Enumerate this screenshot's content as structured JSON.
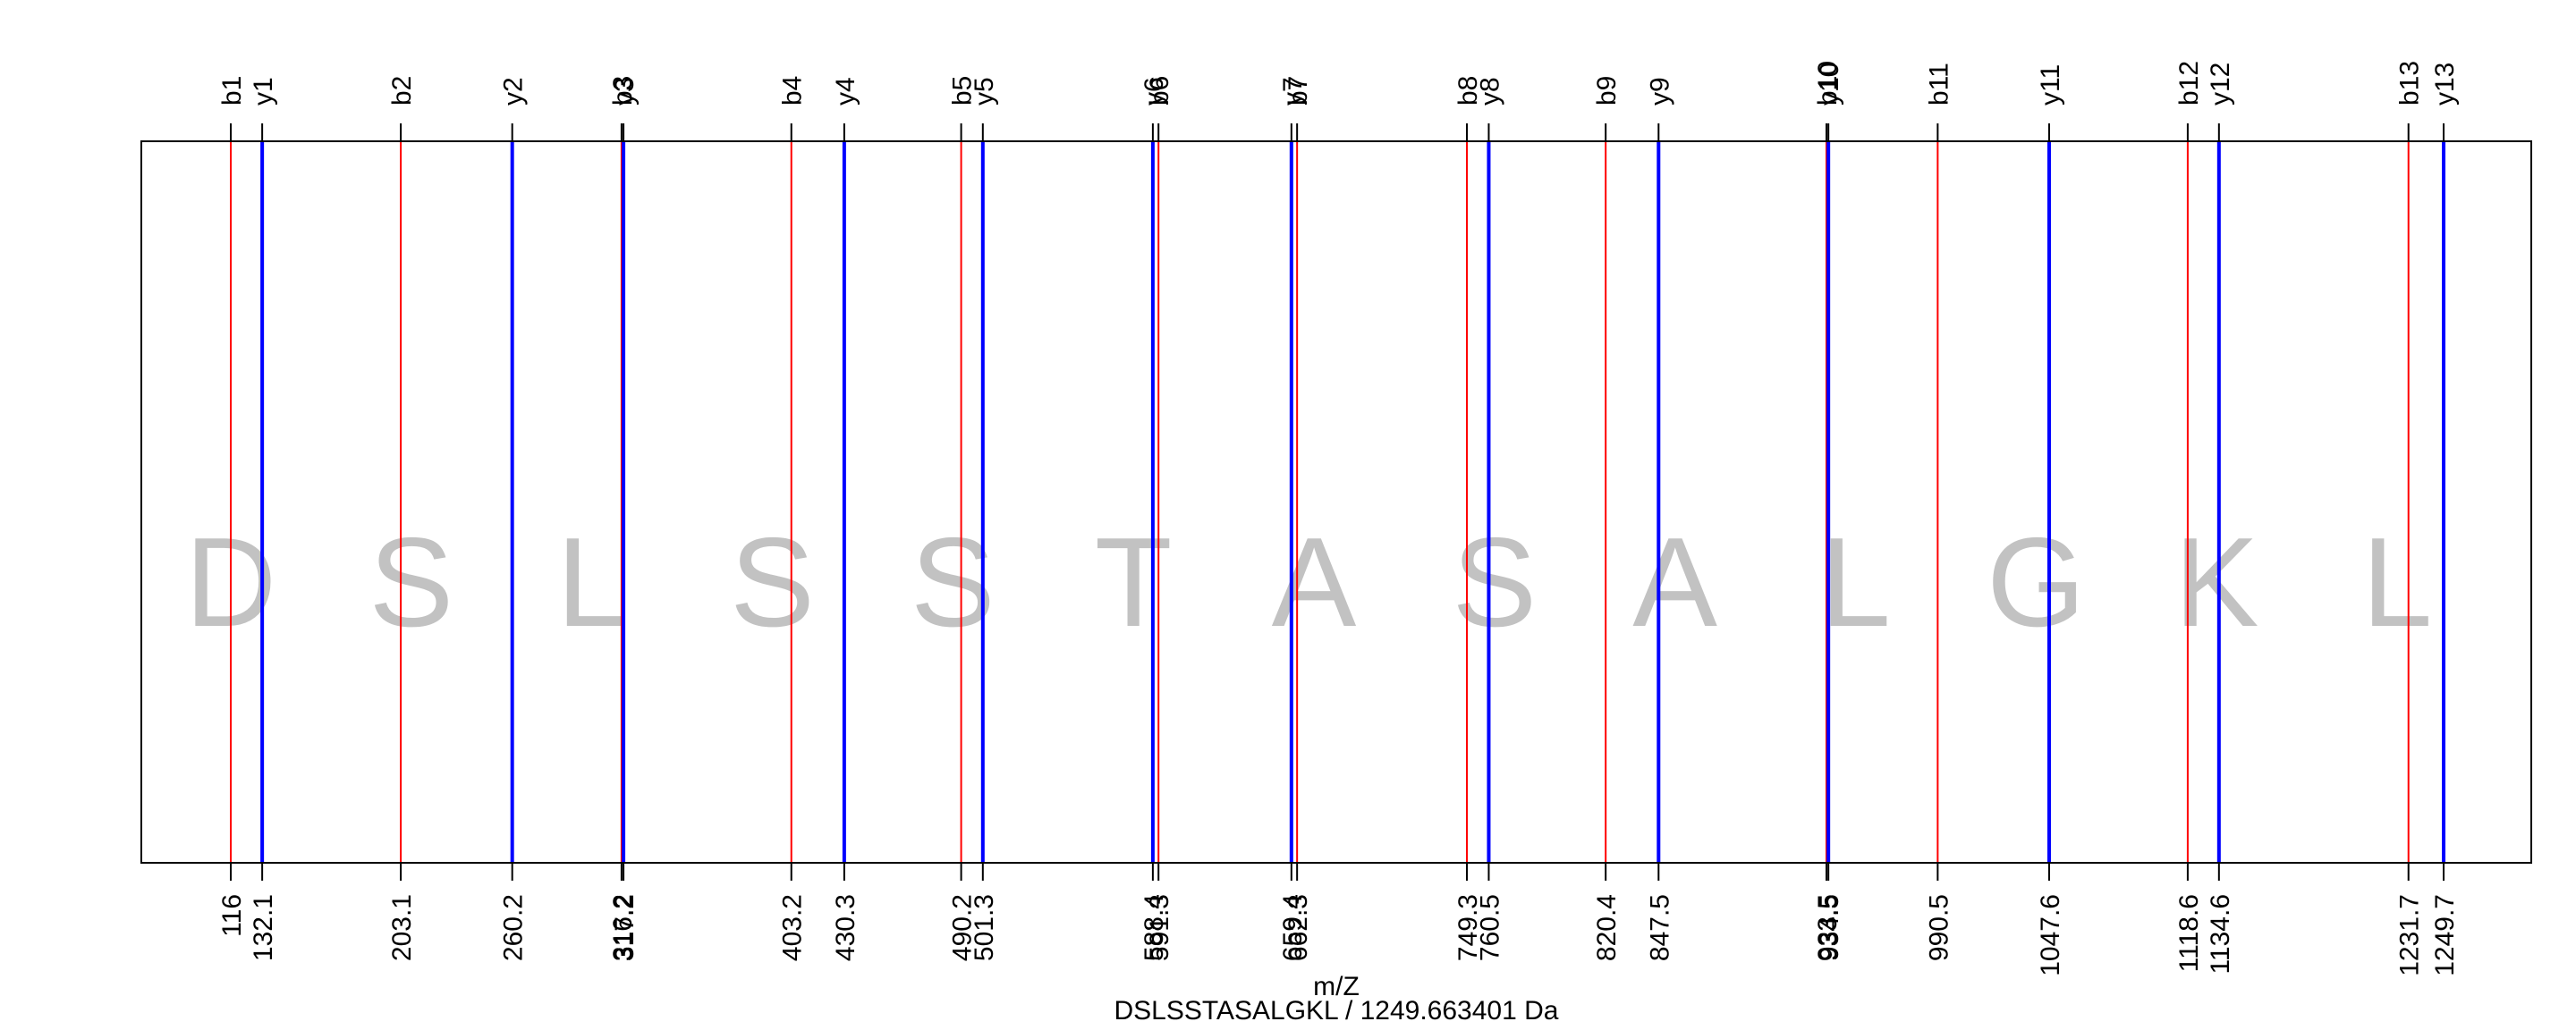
{
  "chart_data": {
    "type": "fragment-ion-spectrum",
    "title": "DSLSSTASALGKL / 1249.663401 Da",
    "xlabel": "m/Z",
    "xlim": [
      116,
      1249.7
    ],
    "peptide_residues": [
      "D",
      "S",
      "L",
      "S",
      "S",
      "T",
      "A",
      "S",
      "A",
      "L",
      "G",
      "K",
      "L"
    ],
    "colors": {
      "b": "#ff0000",
      "y": "#0000ff",
      "text": "#000000",
      "residue": "#c2c2c2"
    },
    "series": [
      {
        "name": "b",
        "labels": [
          "b1",
          "b2",
          "b3",
          "b4",
          "b5",
          "b6",
          "b7",
          "b8",
          "b9",
          "b10",
          "b11",
          "b12",
          "b13"
        ],
        "values": [
          116,
          203.1,
          316.2,
          403.2,
          490.2,
          591.3,
          662.3,
          749.3,
          820.4,
          933.5,
          990.5,
          1118.6,
          1231.7
        ],
        "tick_labels": [
          "116",
          "203.1",
          "316.2",
          "403.2",
          "490.2",
          "591.3",
          "662.3",
          "749.3",
          "820.4",
          "933.5",
          "990.5",
          "1118.6",
          "1231.7"
        ]
      },
      {
        "name": "y",
        "labels": [
          "y1",
          "y2",
          "y3",
          "y4",
          "y5",
          "y6",
          "y7",
          "y8",
          "y9",
          "y10",
          "y11",
          "y12",
          "y13"
        ],
        "values": [
          132.1,
          260.2,
          317.2,
          430.3,
          501.3,
          588.4,
          659.4,
          760.5,
          847.5,
          934.5,
          1047.6,
          1134.6,
          1249.7
        ],
        "tick_labels": [
          "132.1",
          "260.2",
          "317.2",
          "430.3",
          "501.3",
          "588.4",
          "659.4",
          "760.5",
          "847.5",
          "934.5",
          "1047.6",
          "1134.6",
          "1249.7"
        ]
      }
    ]
  }
}
